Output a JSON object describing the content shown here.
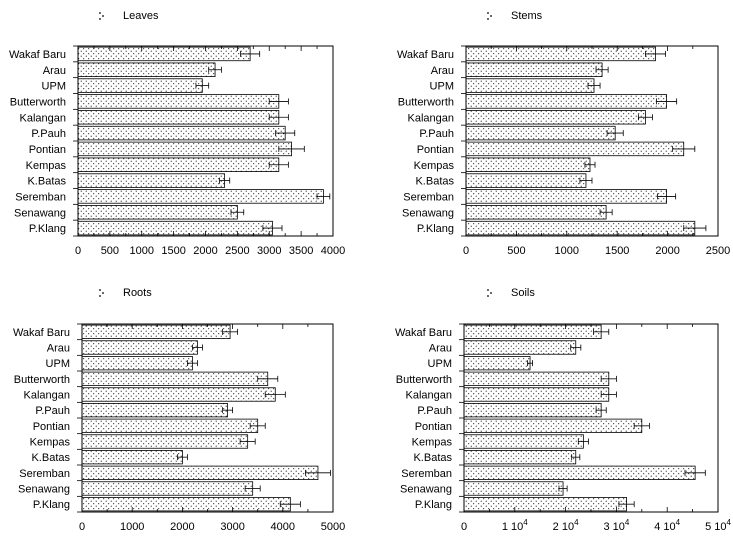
{
  "chart_data": [
    {
      "type": "bar",
      "orientation": "horizontal",
      "legend": "Leaves",
      "categories": [
        "Wakaf Baru",
        "Arau",
        "UPM",
        "Butterworth",
        "Kalangan",
        "P.Pauh",
        "Pontian",
        "Kempas",
        "K.Batas",
        "Seremban",
        "Senawang",
        "P.Klang"
      ],
      "values": [
        2700,
        2150,
        1950,
        3150,
        3150,
        3250,
        3350,
        3150,
        2300,
        3850,
        2500,
        3050
      ],
      "errors": [
        150,
        100,
        100,
        150,
        150,
        150,
        200,
        150,
        80,
        100,
        100,
        150
      ],
      "xlim": [
        0,
        4000
      ],
      "ticks": [
        0,
        500,
        1000,
        1500,
        2000,
        2500,
        3000,
        3500,
        4000
      ],
      "tick_labels": [
        "0",
        "500",
        "1000",
        "1500",
        "2000",
        "2500",
        "3000",
        "3500",
        "4000"
      ]
    },
    {
      "type": "bar",
      "orientation": "horizontal",
      "legend": "Stems",
      "categories": [
        "Wakaf Baru",
        "Arau",
        "UPM",
        "Butterworth",
        "Kalangan",
        "P.Pauh",
        "Pontian",
        "Kempas",
        "K.Batas",
        "Seremban",
        "Senawang",
        "P.Klang"
      ],
      "values": [
        1880,
        1350,
        1270,
        1990,
        1780,
        1480,
        2160,
        1230,
        1190,
        1990,
        1390,
        2270
      ],
      "errors": [
        100,
        60,
        60,
        100,
        70,
        80,
        110,
        50,
        60,
        90,
        60,
        110
      ],
      "xlim": [
        0,
        2500
      ],
      "ticks": [
        0,
        500,
        1000,
        1500,
        2000,
        2500
      ],
      "tick_labels": [
        "0",
        "500",
        "1000",
        "1500",
        "2000",
        "2500"
      ]
    },
    {
      "type": "bar",
      "orientation": "horizontal",
      "legend": "Roots",
      "categories": [
        "Wakaf Baru",
        "Arau",
        "UPM",
        "Butterworth",
        "Kalangan",
        "P.Pauh",
        "Pontian",
        "Kempas",
        "K.Batas",
        "Seremban",
        "Senawang",
        "P.Klang"
      ],
      "values": [
        2950,
        2300,
        2200,
        3700,
        3850,
        2900,
        3500,
        3300,
        2000,
        4700,
        3400,
        4150
      ],
      "errors": [
        150,
        100,
        100,
        200,
        200,
        100,
        150,
        150,
        100,
        250,
        150,
        200
      ],
      "xlim": [
        0,
        5000
      ],
      "ticks": [
        0,
        1000,
        2000,
        3000,
        4000,
        5000
      ],
      "tick_labels": [
        "0",
        "1000",
        "2000",
        "3000",
        "4000",
        "5000"
      ]
    },
    {
      "type": "bar",
      "orientation": "horizontal",
      "legend": "Soils",
      "categories": [
        "Wakaf Baru",
        "Arau",
        "UPM",
        "Butterworth",
        "Kalangan",
        "P.Pauh",
        "Pontian",
        "Kempas",
        "K.Batas",
        "Seremban",
        "Senawang",
        "P.Klang"
      ],
      "values": [
        27000,
        22000,
        13000,
        28500,
        28500,
        27000,
        35000,
        23500,
        22000,
        45500,
        19500,
        32000
      ],
      "errors": [
        1500,
        1000,
        500,
        1500,
        1500,
        1000,
        1500,
        1000,
        800,
        2000,
        800,
        1500
      ],
      "xlim": [
        0,
        50000
      ],
      "ticks": [
        0,
        10000,
        20000,
        30000,
        40000,
        50000
      ],
      "tick_labels": [
        "0",
        "1 10⁴",
        "2 10⁴",
        "3 10⁴",
        "4 10⁴",
        "5 10⁴"
      ]
    }
  ]
}
